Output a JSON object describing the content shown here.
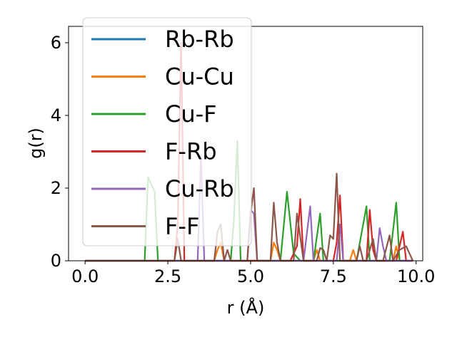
{
  "chart_data": {
    "type": "line",
    "title": "",
    "xlabel": "r (Å)",
    "ylabel": "g(r)",
    "xlim": [
      -0.5,
      10.2
    ],
    "ylim": [
      0,
      6.45
    ],
    "xticks": [
      0.0,
      2.5,
      5.0,
      7.5,
      10.0
    ],
    "xtick_labels": [
      "0.0",
      "2.5",
      "5.0",
      "7.5",
      "10.0"
    ],
    "yticks": [
      0,
      2,
      4,
      6
    ],
    "ytick_labels": [
      "0",
      "2",
      "4",
      "6"
    ],
    "grid": false,
    "legend_position": "top-left",
    "series": [
      {
        "name": "Rb-Rb",
        "color": "#1f77b4",
        "points": [
          [
            0.0,
            0.0
          ],
          [
            9.9,
            0.0
          ]
        ]
      },
      {
        "name": "Cu-Cu",
        "color": "#ff7f0e",
        "points": [
          [
            0.0,
            0.0
          ],
          [
            3.9,
            0.0
          ],
          [
            4.0,
            0.3
          ],
          [
            4.1,
            0.5
          ],
          [
            4.2,
            0.0
          ],
          [
            5.6,
            0.0
          ],
          [
            5.7,
            0.5
          ],
          [
            5.8,
            0.3
          ],
          [
            5.9,
            0.0
          ],
          [
            6.9,
            0.0
          ],
          [
            7.0,
            0.3
          ],
          [
            7.1,
            0.0
          ],
          [
            8.0,
            0.0
          ],
          [
            8.1,
            0.3
          ],
          [
            8.2,
            0.0
          ],
          [
            9.3,
            0.0
          ],
          [
            9.4,
            0.4
          ],
          [
            9.5,
            0.0
          ],
          [
            9.9,
            0.0
          ]
        ]
      },
      {
        "name": "Cu-F",
        "color": "#2ca02c",
        "points": [
          [
            0.0,
            0.0
          ],
          [
            1.8,
            0.0
          ],
          [
            1.9,
            2.3
          ],
          [
            2.1,
            1.9
          ],
          [
            2.2,
            0.0
          ],
          [
            4.4,
            0.0
          ],
          [
            4.5,
            1.2
          ],
          [
            4.6,
            3.3
          ],
          [
            4.7,
            0.0
          ],
          [
            5.9,
            0.0
          ],
          [
            6.1,
            1.9
          ],
          [
            6.3,
            0.2
          ],
          [
            6.5,
            0.0
          ],
          [
            6.9,
            0.0
          ],
          [
            7.1,
            1.3
          ],
          [
            7.2,
            0.0
          ],
          [
            8.2,
            0.0
          ],
          [
            8.5,
            1.5
          ],
          [
            8.6,
            0.0
          ],
          [
            9.2,
            0.0
          ],
          [
            9.4,
            1.6
          ],
          [
            9.5,
            0.0
          ],
          [
            9.9,
            0.0
          ]
        ]
      },
      {
        "name": "F-Rb",
        "color": "#d62728",
        "points": [
          [
            0.0,
            0.0
          ],
          [
            2.7,
            0.0
          ],
          [
            2.8,
            1.0
          ],
          [
            2.9,
            6.0
          ],
          [
            3.0,
            0.0
          ],
          [
            6.2,
            0.0
          ],
          [
            6.4,
            0.4
          ],
          [
            6.5,
            1.7
          ],
          [
            6.6,
            0.0
          ],
          [
            7.5,
            0.0
          ],
          [
            7.6,
            0.5
          ],
          [
            7.7,
            1.8
          ],
          [
            7.8,
            0.0
          ],
          [
            8.5,
            0.0
          ],
          [
            8.6,
            1.4
          ],
          [
            8.7,
            0.3
          ],
          [
            8.8,
            0.0
          ],
          [
            9.4,
            0.0
          ],
          [
            9.6,
            0.8
          ],
          [
            9.7,
            0.0
          ],
          [
            9.9,
            0.0
          ]
        ]
      },
      {
        "name": "Cu-Rb",
        "color": "#9467bd",
        "points": [
          [
            0.0,
            0.0
          ],
          [
            3.4,
            0.0
          ],
          [
            3.5,
            2.9
          ],
          [
            3.6,
            0.0
          ],
          [
            4.9,
            0.0
          ],
          [
            5.0,
            1.4
          ],
          [
            5.1,
            1.3
          ],
          [
            5.2,
            0.0
          ],
          [
            6.6,
            0.0
          ],
          [
            6.8,
            1.5
          ],
          [
            6.9,
            0.0
          ],
          [
            7.6,
            0.0
          ],
          [
            7.7,
            1.0
          ],
          [
            7.8,
            0.0
          ],
          [
            8.8,
            0.0
          ],
          [
            8.9,
            0.9
          ],
          [
            9.0,
            0.4
          ],
          [
            9.1,
            0.0
          ],
          [
            9.9,
            0.0
          ]
        ]
      },
      {
        "name": "F-F",
        "color": "#8c564b",
        "points": [
          [
            0.0,
            0.0
          ],
          [
            2.7,
            0.0
          ],
          [
            2.8,
            0.6
          ],
          [
            2.9,
            0.0
          ],
          [
            3.9,
            0.0
          ],
          [
            4.0,
            0.8
          ],
          [
            4.1,
            1.0
          ],
          [
            4.2,
            0.0
          ],
          [
            4.3,
            0.3
          ],
          [
            4.4,
            0.0
          ],
          [
            4.9,
            0.0
          ],
          [
            5.0,
            1.3
          ],
          [
            5.1,
            2.0
          ],
          [
            5.2,
            0.0
          ],
          [
            5.6,
            0.0
          ],
          [
            5.7,
            1.6
          ],
          [
            5.8,
            0.5
          ],
          [
            5.9,
            0.0
          ],
          [
            6.3,
            0.0
          ],
          [
            6.4,
            1.3
          ],
          [
            6.6,
            0.0
          ],
          [
            7.0,
            0.0
          ],
          [
            7.1,
            0.35
          ],
          [
            7.2,
            0.3
          ],
          [
            7.3,
            0.0
          ],
          [
            7.4,
            0.7
          ],
          [
            7.5,
            0.6
          ],
          [
            7.6,
            2.4
          ],
          [
            7.7,
            0.0
          ],
          [
            8.2,
            0.0
          ],
          [
            8.3,
            0.4
          ],
          [
            8.4,
            0.0
          ],
          [
            8.5,
            0.0
          ],
          [
            8.7,
            0.6
          ],
          [
            8.8,
            0.0
          ],
          [
            9.0,
            0.0
          ],
          [
            9.2,
            0.7
          ],
          [
            9.3,
            0.0
          ],
          [
            9.5,
            0.3
          ],
          [
            9.7,
            0.4
          ],
          [
            9.8,
            0.2
          ],
          [
            9.9,
            0.0
          ]
        ]
      }
    ]
  }
}
